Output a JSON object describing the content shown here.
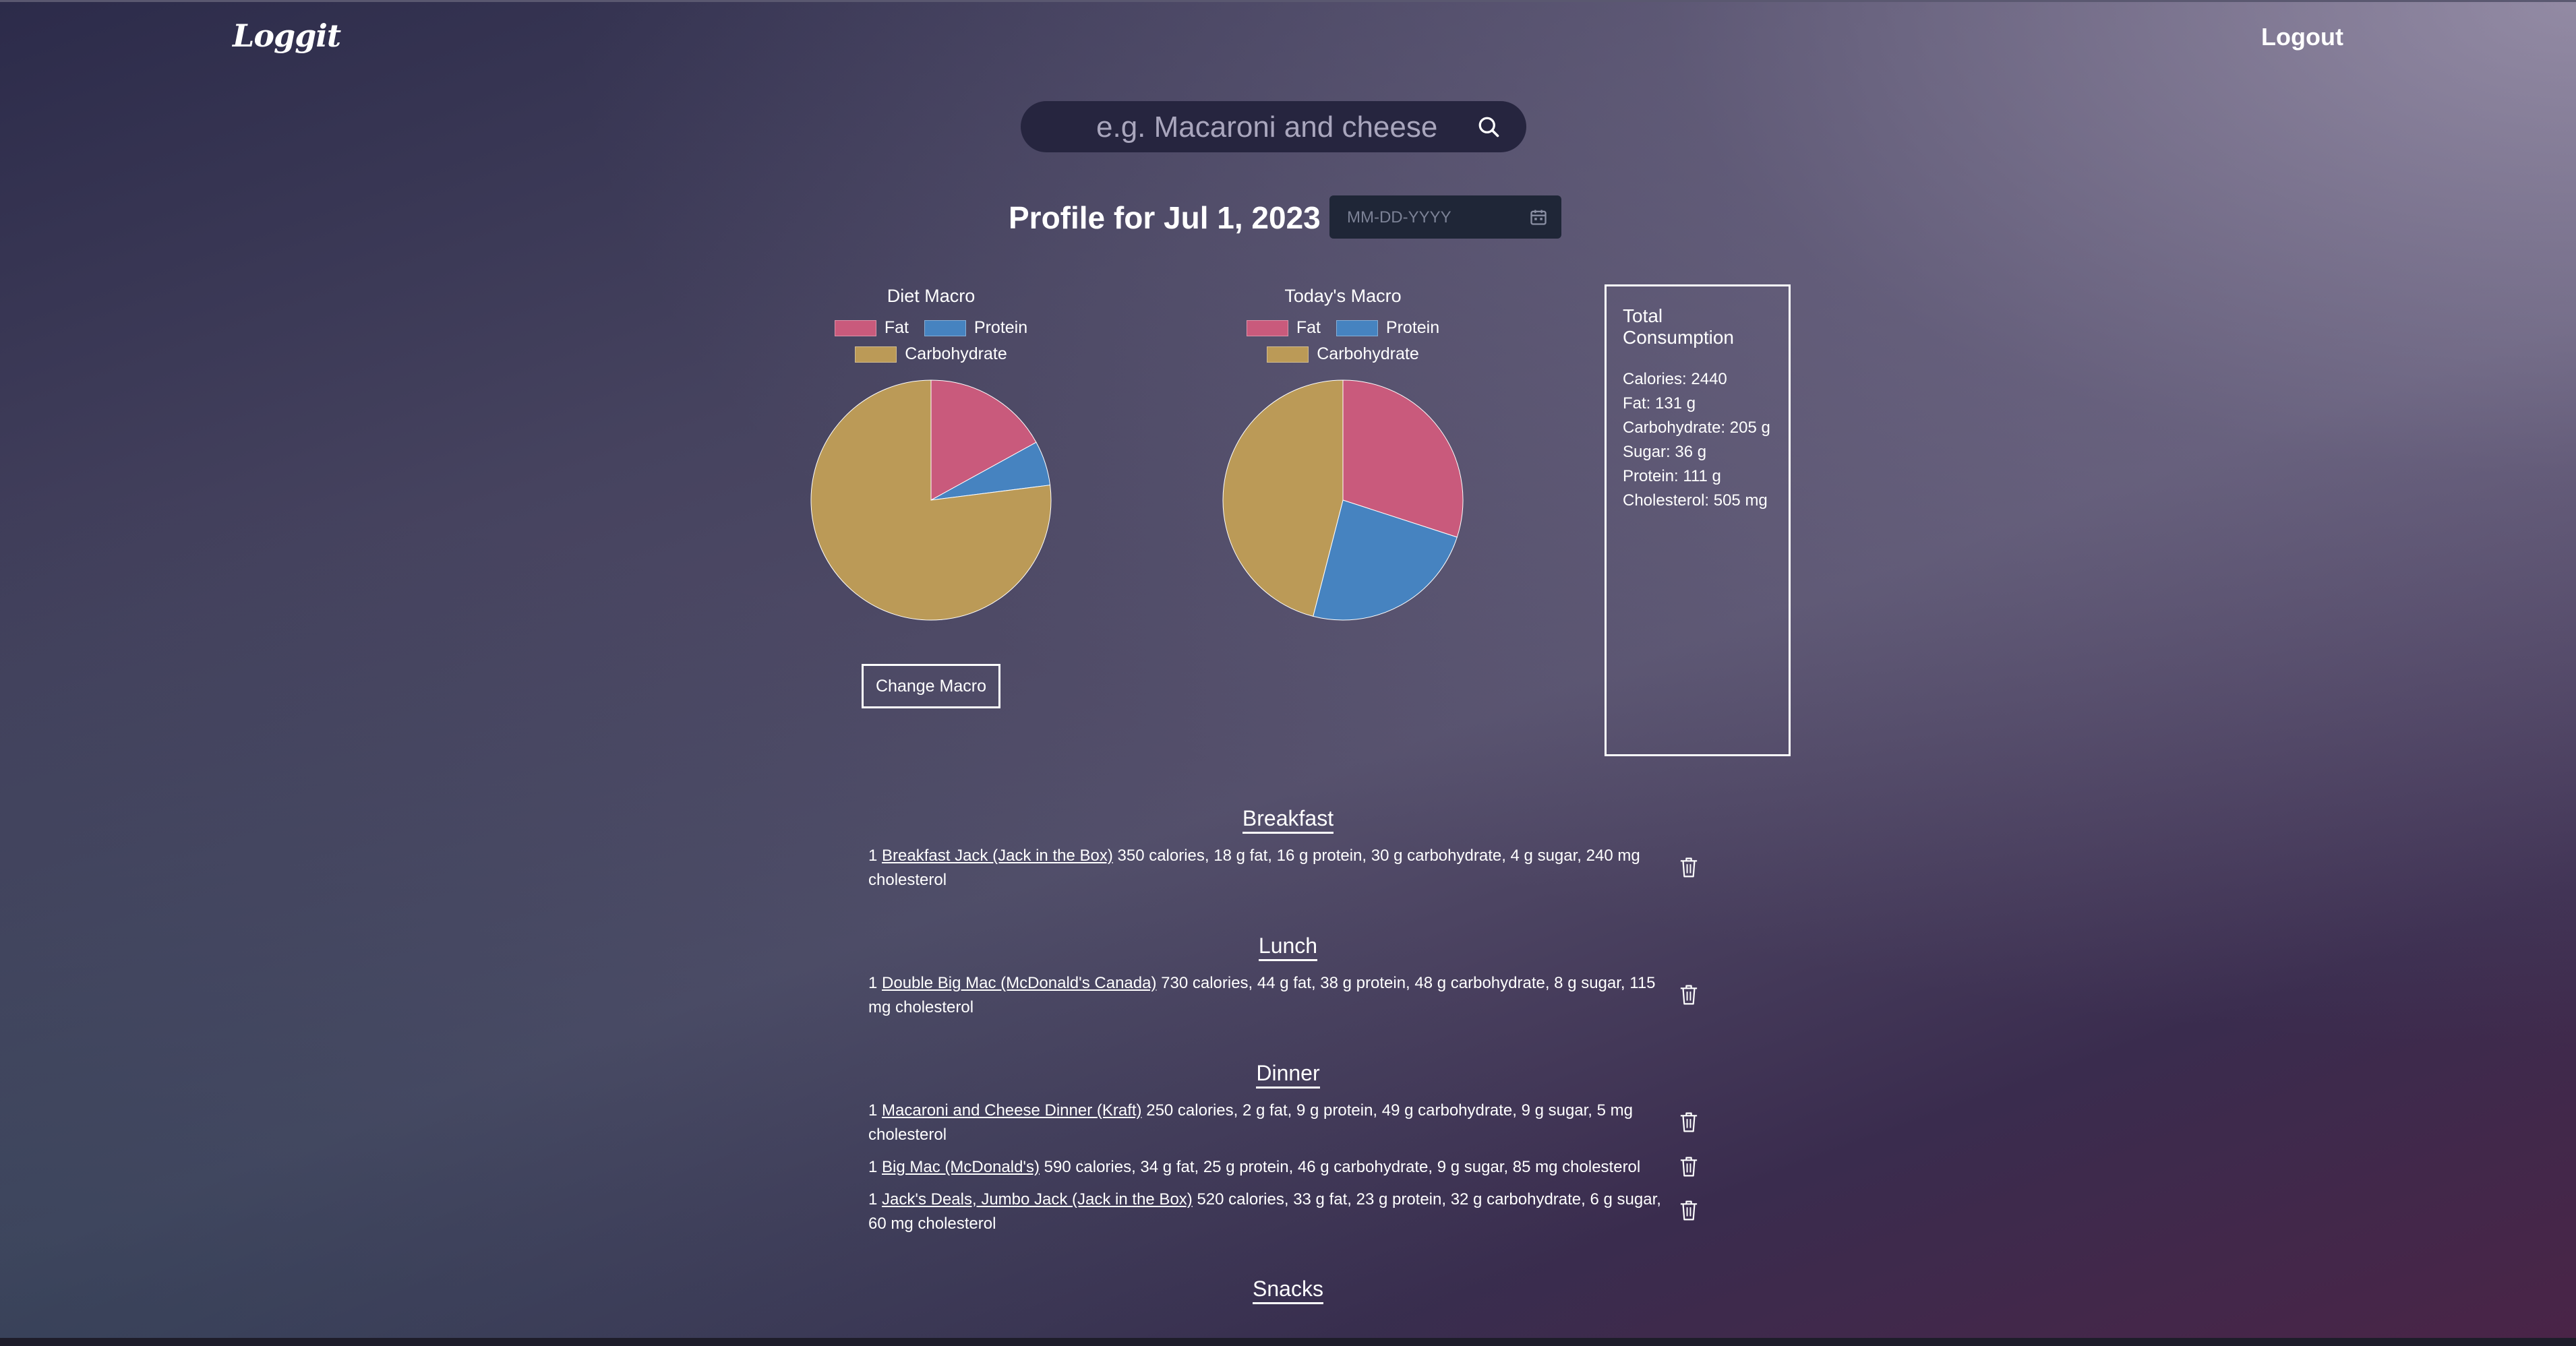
{
  "app": {
    "logo": "Loggit",
    "logout_label": "Logout"
  },
  "search": {
    "placeholder": "e.g. Macaroni and cheese",
    "icon": "search-icon"
  },
  "profile": {
    "title": "Profile for Jul 1, 2023",
    "date_placeholder": "MM-DD-YYYY",
    "date_icon": "calendar-icon"
  },
  "colors": {
    "fat": "#c95a7c",
    "protein": "#4683c0",
    "carbohydrate": "#bb9a57"
  },
  "chart_data": [
    {
      "type": "pie",
      "title": "Diet Macro",
      "labels": [
        "Fat",
        "Protein",
        "Carbohydrate"
      ],
      "values": [
        17,
        6,
        77
      ],
      "legend": "top"
    },
    {
      "type": "pie",
      "title": "Today's Macro",
      "labels": [
        "Fat",
        "Protein",
        "Carbohydrate"
      ],
      "values": [
        30,
        24,
        46
      ],
      "legend": "top"
    }
  ],
  "change_macro_label": "Change Macro",
  "consumption": {
    "title": "Total Consumption",
    "lines": [
      "Calories: 2440",
      "Fat: 131 g",
      "Carbohydrate: 205 g",
      "Sugar: 36 g",
      "Protein: 111 g",
      "Cholesterol: 505 mg"
    ]
  },
  "meals": [
    {
      "name": "Breakfast",
      "entries": [
        {
          "qty": "1",
          "food": "Breakfast Jack (Jack in the Box)",
          "details": " 350 calories, 18 g fat, 16 g protein, 30 g carbohydrate, 4 g sugar, 240 mg cholesterol"
        }
      ]
    },
    {
      "name": "Lunch",
      "entries": [
        {
          "qty": "1",
          "food": "Double Big Mac (McDonald's Canada)",
          "details": " 730 calories, 44 g fat, 38 g protein, 48 g carbohydrate, 8 g sugar, 115 mg cholesterol"
        }
      ]
    },
    {
      "name": "Dinner",
      "entries": [
        {
          "qty": "1",
          "food": "Macaroni and Cheese Dinner (Kraft)",
          "details": " 250 calories, 2 g fat, 9 g protein, 49 g carbohydrate, 9 g sugar, 5 mg cholesterol"
        },
        {
          "qty": "1",
          "food": "Big Mac (McDonald's)",
          "details": " 590 calories, 34 g fat, 25 g protein, 46 g carbohydrate, 9 g sugar, 85 mg cholesterol"
        },
        {
          "qty": "1",
          "food": "Jack's Deals, Jumbo Jack (Jack in the Box)",
          "details": " 520 calories, 33 g fat, 23 g protein, 32 g carbohydrate, 6 g sugar, 60 mg cholesterol"
        }
      ]
    },
    {
      "name": "Snacks",
      "entries": []
    }
  ]
}
